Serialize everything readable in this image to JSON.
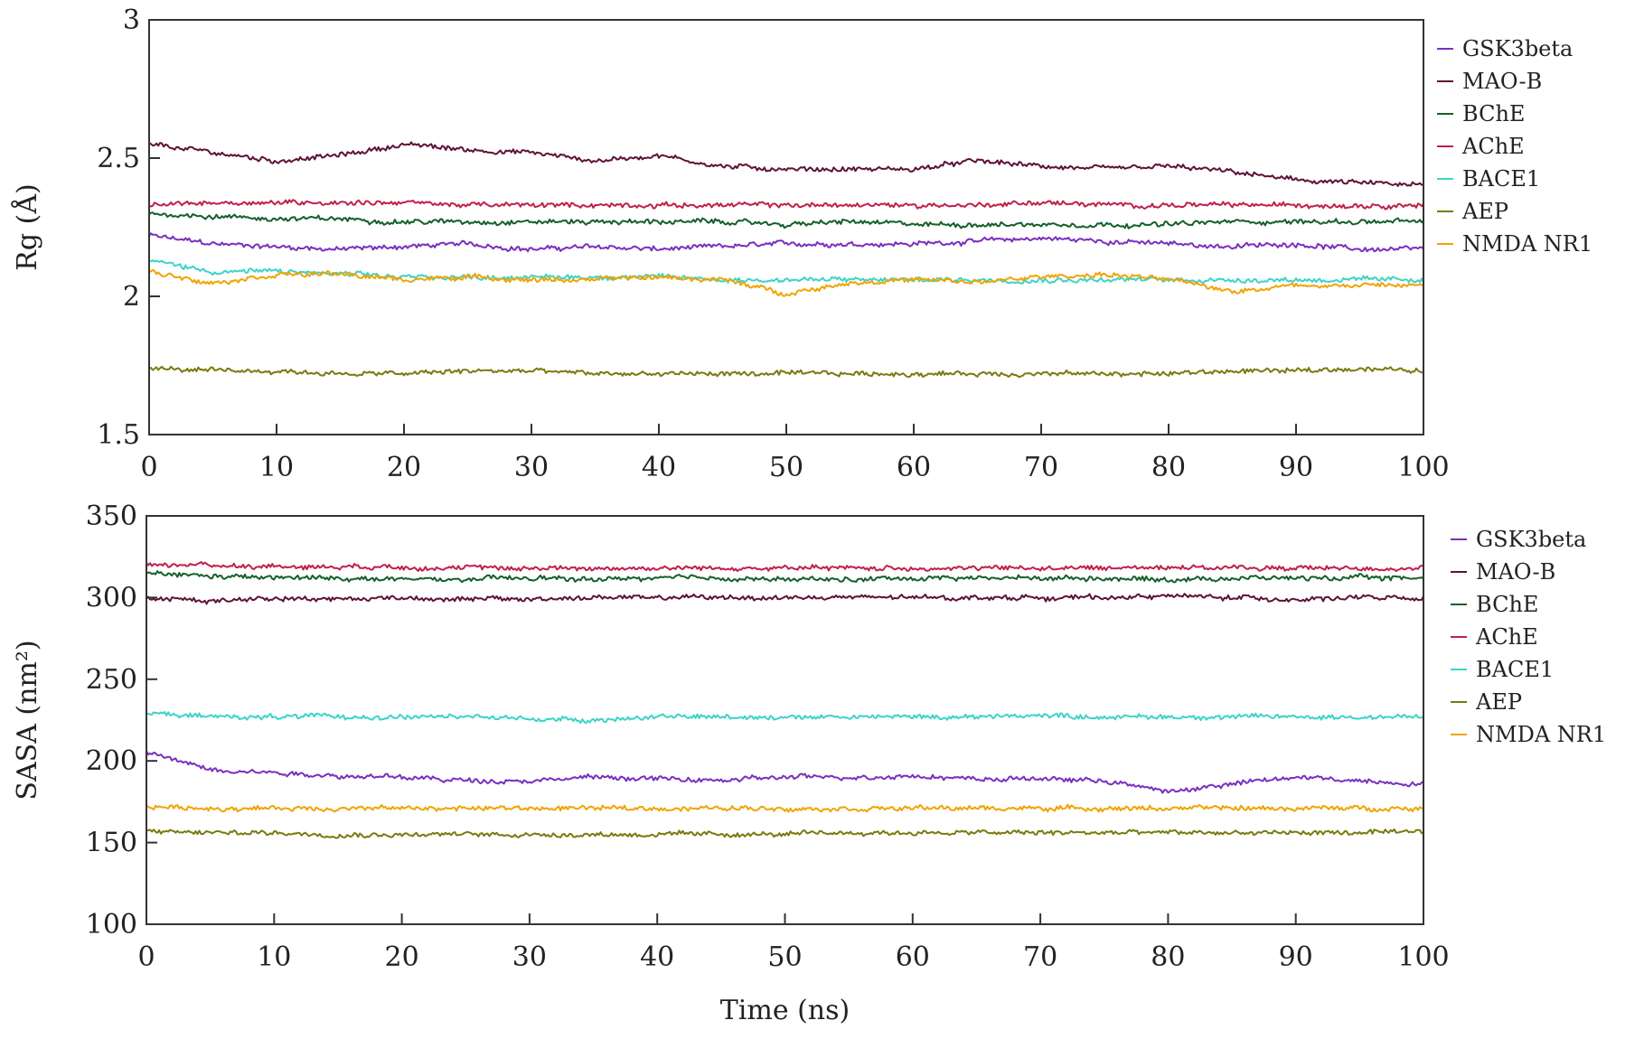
{
  "chart_data": [
    {
      "type": "line",
      "title": "",
      "xlabel": "",
      "ylabel": "Rg (Å)",
      "xlim": [
        0,
        100
      ],
      "ylim": [
        1.5,
        3
      ],
      "xticks": [
        "0",
        "10",
        "20",
        "30",
        "40",
        "50",
        "60",
        "70",
        "80",
        "90",
        "100"
      ],
      "yticks": [
        "1.5",
        "2",
        "2.5",
        "3"
      ],
      "legend_position": "top-right",
      "grid": false,
      "series": [
        {
          "name": "GSK3beta",
          "color": "#7b2fbe",
          "x": [
            0,
            5,
            10,
            15,
            20,
            25,
            30,
            35,
            40,
            45,
            50,
            55,
            60,
            65,
            70,
            75,
            80,
            85,
            90,
            95,
            100
          ],
          "y": [
            2.22,
            2.19,
            2.18,
            2.17,
            2.18,
            2.19,
            2.17,
            2.18,
            2.17,
            2.18,
            2.19,
            2.19,
            2.19,
            2.2,
            2.21,
            2.2,
            2.19,
            2.18,
            2.19,
            2.17,
            2.17
          ]
        },
        {
          "name": "MAO-B",
          "color": "#5e1238",
          "x": [
            0,
            5,
            10,
            15,
            20,
            25,
            30,
            35,
            40,
            45,
            50,
            55,
            60,
            65,
            70,
            75,
            80,
            85,
            90,
            95,
            100
          ],
          "y": [
            2.55,
            2.52,
            2.49,
            2.51,
            2.55,
            2.53,
            2.52,
            2.49,
            2.51,
            2.47,
            2.46,
            2.46,
            2.46,
            2.49,
            2.47,
            2.46,
            2.47,
            2.45,
            2.42,
            2.41,
            2.4
          ]
        },
        {
          "name": "BChE",
          "color": "#14602a",
          "x": [
            0,
            5,
            10,
            15,
            20,
            25,
            30,
            35,
            40,
            45,
            50,
            55,
            60,
            65,
            70,
            75,
            80,
            85,
            90,
            95,
            100
          ],
          "y": [
            2.3,
            2.29,
            2.28,
            2.28,
            2.27,
            2.27,
            2.27,
            2.27,
            2.27,
            2.27,
            2.26,
            2.27,
            2.26,
            2.26,
            2.26,
            2.26,
            2.26,
            2.27,
            2.27,
            2.27,
            2.27
          ]
        },
        {
          "name": "AChE",
          "color": "#c0204a",
          "x": [
            0,
            5,
            10,
            15,
            20,
            25,
            30,
            35,
            40,
            45,
            50,
            55,
            60,
            65,
            70,
            75,
            80,
            85,
            90,
            95,
            100
          ],
          "y": [
            2.33,
            2.34,
            2.34,
            2.34,
            2.34,
            2.33,
            2.33,
            2.33,
            2.33,
            2.33,
            2.33,
            2.33,
            2.33,
            2.33,
            2.34,
            2.33,
            2.33,
            2.33,
            2.33,
            2.33,
            2.33
          ]
        },
        {
          "name": "BACE1",
          "color": "#3cd4c8",
          "x": [
            0,
            5,
            10,
            15,
            20,
            25,
            30,
            35,
            40,
            45,
            50,
            55,
            60,
            65,
            70,
            75,
            80,
            85,
            90,
            95,
            100
          ],
          "y": [
            2.13,
            2.09,
            2.09,
            2.08,
            2.07,
            2.07,
            2.07,
            2.07,
            2.07,
            2.06,
            2.06,
            2.06,
            2.06,
            2.06,
            2.06,
            2.06,
            2.06,
            2.06,
            2.06,
            2.06,
            2.06
          ]
        },
        {
          "name": "AEP",
          "color": "#7a7a10",
          "x": [
            0,
            5,
            10,
            15,
            20,
            25,
            30,
            35,
            40,
            45,
            50,
            55,
            60,
            65,
            70,
            75,
            80,
            85,
            90,
            95,
            100
          ],
          "y": [
            1.74,
            1.73,
            1.73,
            1.72,
            1.72,
            1.73,
            1.73,
            1.72,
            1.72,
            1.72,
            1.72,
            1.72,
            1.72,
            1.72,
            1.72,
            1.72,
            1.72,
            1.73,
            1.73,
            1.74,
            1.73
          ]
        },
        {
          "name": "NMDA NR1",
          "color": "#f0a400",
          "x": [
            0,
            5,
            10,
            15,
            20,
            25,
            30,
            35,
            40,
            45,
            50,
            55,
            60,
            65,
            70,
            75,
            80,
            85,
            90,
            95,
            100
          ],
          "y": [
            2.09,
            2.05,
            2.08,
            2.08,
            2.06,
            2.07,
            2.06,
            2.06,
            2.07,
            2.06,
            2.01,
            2.05,
            2.06,
            2.05,
            2.07,
            2.08,
            2.06,
            2.02,
            2.04,
            2.04,
            2.04
          ]
        }
      ]
    },
    {
      "type": "line",
      "title": "",
      "xlabel": "Time (ns)",
      "ylabel": "SASA (nm²)",
      "xlim": [
        0,
        100
      ],
      "ylim": [
        100,
        350
      ],
      "xticks": [
        "0",
        "10",
        "20",
        "30",
        "40",
        "50",
        "60",
        "70",
        "80",
        "90",
        "100"
      ],
      "yticks": [
        "100",
        "150",
        "200",
        "250",
        "300",
        "350"
      ],
      "legend_position": "top-right",
      "grid": false,
      "series": [
        {
          "name": "GSK3beta",
          "color": "#7b2fbe",
          "x": [
            0,
            5,
            10,
            15,
            20,
            25,
            30,
            35,
            40,
            45,
            50,
            55,
            60,
            65,
            70,
            75,
            80,
            85,
            90,
            95,
            100
          ],
          "y": [
            205,
            195,
            193,
            191,
            190,
            188,
            188,
            190,
            189,
            188,
            190,
            190,
            191,
            189,
            189,
            188,
            181,
            186,
            190,
            188,
            186
          ]
        },
        {
          "name": "MAO-B",
          "color": "#5e1238",
          "x": [
            0,
            5,
            10,
            15,
            20,
            25,
            30,
            35,
            40,
            45,
            50,
            55,
            60,
            65,
            70,
            75,
            80,
            85,
            90,
            95,
            100
          ],
          "y": [
            300,
            298,
            300,
            299,
            300,
            299,
            299,
            300,
            300,
            300,
            300,
            300,
            300,
            300,
            300,
            300,
            301,
            300,
            299,
            300,
            299
          ]
        },
        {
          "name": "BChE",
          "color": "#14602a",
          "x": [
            0,
            5,
            10,
            15,
            20,
            25,
            30,
            35,
            40,
            45,
            50,
            55,
            60,
            65,
            70,
            75,
            80,
            85,
            90,
            95,
            100
          ],
          "y": [
            315,
            313,
            312,
            312,
            311,
            311,
            312,
            311,
            312,
            312,
            311,
            311,
            312,
            312,
            312,
            312,
            311,
            312,
            312,
            312,
            312
          ]
        },
        {
          "name": "AChE",
          "color": "#c0204a",
          "x": [
            0,
            5,
            10,
            15,
            20,
            25,
            30,
            35,
            40,
            45,
            50,
            55,
            60,
            65,
            70,
            75,
            80,
            85,
            90,
            95,
            100
          ],
          "y": [
            320,
            320,
            319,
            319,
            319,
            318,
            318,
            318,
            318,
            318,
            318,
            318,
            318,
            318,
            318,
            318,
            319,
            318,
            318,
            318,
            318
          ]
        },
        {
          "name": "BACE1",
          "color": "#3cd4c8",
          "x": [
            0,
            5,
            10,
            15,
            20,
            25,
            30,
            35,
            40,
            45,
            50,
            55,
            60,
            65,
            70,
            75,
            80,
            85,
            90,
            95,
            100
          ],
          "y": [
            229,
            227,
            227,
            227,
            227,
            227,
            226,
            225,
            227,
            227,
            227,
            227,
            227,
            227,
            228,
            227,
            227,
            227,
            227,
            227,
            227
          ]
        },
        {
          "name": "AEP",
          "color": "#7a7a10",
          "x": [
            0,
            5,
            10,
            15,
            20,
            25,
            30,
            35,
            40,
            45,
            50,
            55,
            60,
            65,
            70,
            75,
            80,
            85,
            90,
            95,
            100
          ],
          "y": [
            157,
            156,
            156,
            155,
            155,
            155,
            155,
            155,
            155,
            155,
            155,
            156,
            156,
            156,
            156,
            156,
            156,
            156,
            156,
            156,
            156
          ]
        },
        {
          "name": "NMDA NR1",
          "color": "#f0a400",
          "x": [
            0,
            5,
            10,
            15,
            20,
            25,
            30,
            35,
            40,
            45,
            50,
            55,
            60,
            65,
            70,
            75,
            80,
            85,
            90,
            95,
            100
          ],
          "y": [
            172,
            171,
            171,
            171,
            171,
            171,
            171,
            171,
            171,
            171,
            171,
            171,
            171,
            171,
            171,
            171,
            171,
            171,
            171,
            171,
            171
          ]
        }
      ]
    }
  ]
}
